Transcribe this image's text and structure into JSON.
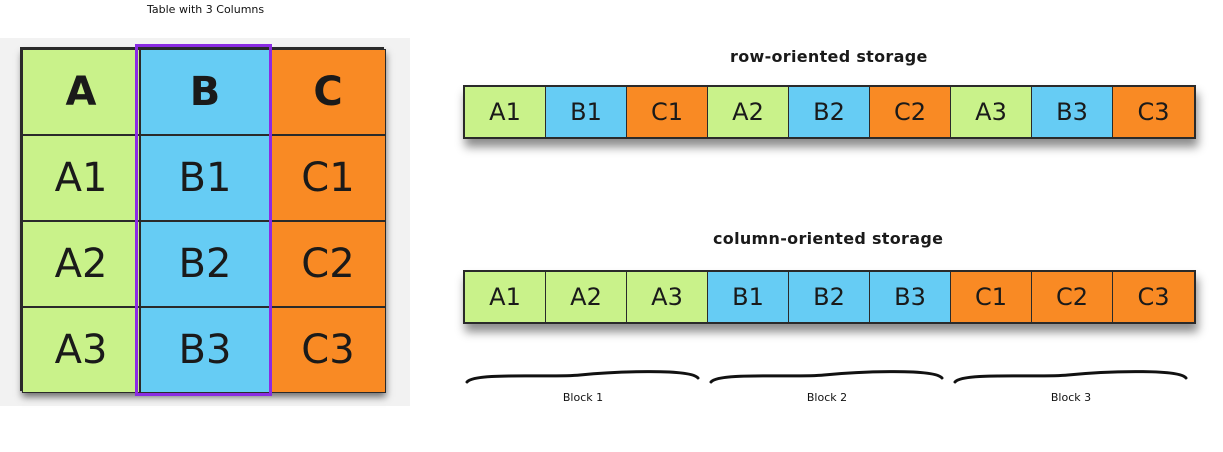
{
  "table": {
    "caption": "Table with 3 Columns",
    "header": [
      "A",
      "B",
      "C"
    ],
    "rows": [
      [
        "A1",
        "B1",
        "C1"
      ],
      [
        "A2",
        "B2",
        "C2"
      ],
      [
        "A3",
        "B3",
        "C3"
      ]
    ],
    "highlighted_column": "B"
  },
  "row_storage": {
    "title": "row-oriented storage",
    "cells": [
      "A1",
      "B1",
      "C1",
      "A2",
      "B2",
      "C2",
      "A3",
      "B3",
      "C3"
    ]
  },
  "column_storage": {
    "title": "column-oriented storage",
    "cells": [
      "A1",
      "A2",
      "A3",
      "B1",
      "B2",
      "B3",
      "C1",
      "C2",
      "C3"
    ]
  },
  "blocks": [
    "Block 1",
    "Block 2",
    "Block 3"
  ],
  "colors": {
    "A": "#c9f28a",
    "B": "#66ccf4",
    "C": "#f98a24",
    "highlight": "#8a2be2"
  }
}
